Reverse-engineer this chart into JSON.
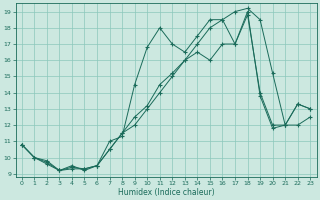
{
  "xlabel": "Humidex (Indice chaleur)",
  "bg_color": "#cce8e0",
  "grid_color": "#8cc8bc",
  "line_color": "#1a6b5a",
  "xlim": [
    -0.5,
    23.5
  ],
  "ylim": [
    8.8,
    19.5
  ],
  "yticks": [
    9,
    10,
    11,
    12,
    13,
    14,
    15,
    16,
    17,
    18,
    19
  ],
  "xticks": [
    0,
    1,
    2,
    3,
    4,
    5,
    6,
    7,
    8,
    9,
    10,
    11,
    12,
    13,
    14,
    15,
    16,
    17,
    18,
    19,
    20,
    21,
    22,
    23
  ],
  "series": [
    {
      "x": [
        0,
        1,
        2,
        3,
        4,
        5,
        6,
        7,
        8,
        9,
        10,
        11,
        12,
        13,
        14,
        15,
        16,
        17,
        18,
        19,
        20,
        21,
        22,
        23
      ],
      "y": [
        10.8,
        10.0,
        9.7,
        9.2,
        9.4,
        9.3,
        9.5,
        11.0,
        11.3,
        14.5,
        16.8,
        18.0,
        17.0,
        16.5,
        17.5,
        18.5,
        18.5,
        17.0,
        18.8,
        14.0,
        12.0,
        12.0,
        13.3,
        13.0
      ]
    },
    {
      "x": [
        0,
        1,
        2,
        3,
        4,
        5,
        6,
        7,
        8,
        9,
        10,
        11,
        12,
        13,
        14,
        15,
        16,
        17,
        18,
        19,
        20,
        21,
        22,
        23
      ],
      "y": [
        10.8,
        10.0,
        9.8,
        9.2,
        9.5,
        9.2,
        9.5,
        10.5,
        11.5,
        12.5,
        13.2,
        14.5,
        15.2,
        16.0,
        17.0,
        18.0,
        18.5,
        19.0,
        19.2,
        18.5,
        15.2,
        12.0,
        12.0,
        12.5
      ]
    },
    {
      "x": [
        0,
        1,
        2,
        3,
        4,
        5,
        6,
        7,
        8,
        9,
        10,
        11,
        12,
        13,
        14,
        15,
        16,
        17,
        18,
        19,
        20,
        21,
        22,
        23
      ],
      "y": [
        10.8,
        10.0,
        9.6,
        9.2,
        9.3,
        9.3,
        9.5,
        10.5,
        11.5,
        12.0,
        13.0,
        14.0,
        15.0,
        16.0,
        16.5,
        16.0,
        17.0,
        17.0,
        19.0,
        13.8,
        11.8,
        12.0,
        13.3,
        13.0
      ]
    }
  ]
}
